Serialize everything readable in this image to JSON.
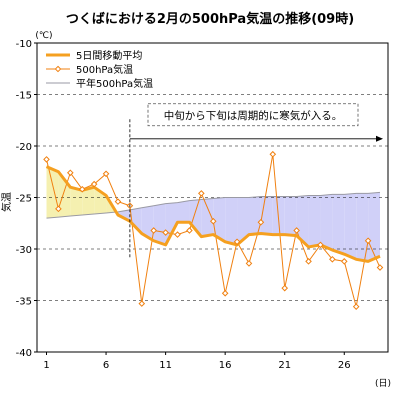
{
  "chart_data": {
    "type": "line",
    "title": "つくばにおける2月の500hPa気温の推移(09時)",
    "ylabel": "気温",
    "y_unit": "(℃)",
    "x_unit": "(日)",
    "xlim": [
      1,
      29
    ],
    "ylim": [
      -40,
      -10
    ],
    "yticks": [
      -10,
      -15,
      -20,
      -25,
      -30,
      -35,
      -40
    ],
    "xticks": [
      1,
      6,
      11,
      16,
      21,
      26
    ],
    "x": [
      1,
      2,
      3,
      4,
      5,
      6,
      7,
      8,
      9,
      10,
      11,
      12,
      13,
      14,
      15,
      16,
      17,
      18,
      19,
      20,
      21,
      22,
      23,
      24,
      25,
      26,
      27,
      28,
      29
    ],
    "grid": "horizontal-dashed",
    "legend_position": "top-left",
    "series": [
      {
        "name": "5日間移動平均",
        "color": "#f5a020",
        "style": "thick-line",
        "values": [
          -22.0,
          -22.5,
          -24.0,
          -24.3,
          -24.0,
          -24.8,
          -26.7,
          -27.3,
          -28.5,
          -29.2,
          -29.6,
          -27.4,
          -27.4,
          -28.8,
          -28.6,
          -29.3,
          -29.6,
          -28.6,
          -28.5,
          -28.6,
          -28.6,
          -28.7,
          -29.8,
          -29.6,
          -30.1,
          -30.5,
          -31.0,
          -31.2,
          -30.7
        ]
      },
      {
        "name": "500hPa気温",
        "color": "#f08010",
        "style": "line-diamond",
        "values": [
          -21.3,
          -26.1,
          -22.6,
          -24.2,
          -23.7,
          -22.7,
          -25.4,
          -25.8,
          -35.3,
          -28.2,
          -28.4,
          -28.6,
          -28.2,
          -24.6,
          -27.3,
          -34.3,
          -29.3,
          -31.4,
          -27.4,
          -20.8,
          -33.8,
          -28.2,
          -31.2,
          -29.6,
          -31.0,
          -31.2,
          -35.6,
          -29.2,
          -31.8
        ]
      },
      {
        "name": "平年500hPa気温",
        "color": "#9a9aa4",
        "style": "thin-line",
        "values": [
          -27.0,
          -26.9,
          -26.8,
          -26.7,
          -26.6,
          -26.5,
          -26.4,
          -26.2,
          -26.0,
          -25.8,
          -25.6,
          -25.5,
          -25.3,
          -25.2,
          -25.1,
          -25.0,
          -25.0,
          -25.0,
          -24.9,
          -24.9,
          -24.9,
          -24.9,
          -24.8,
          -24.8,
          -24.7,
          -24.7,
          -24.6,
          -24.6,
          -24.5
        ]
      }
    ],
    "fills": {
      "warm_color": "#f5f0b0",
      "cold_color": "#d0d0f8"
    },
    "annotation": {
      "text": "中旬から下旬は周期的に寒気が入る。",
      "from_x": 8,
      "to_x": 29,
      "color": "#000000"
    }
  }
}
